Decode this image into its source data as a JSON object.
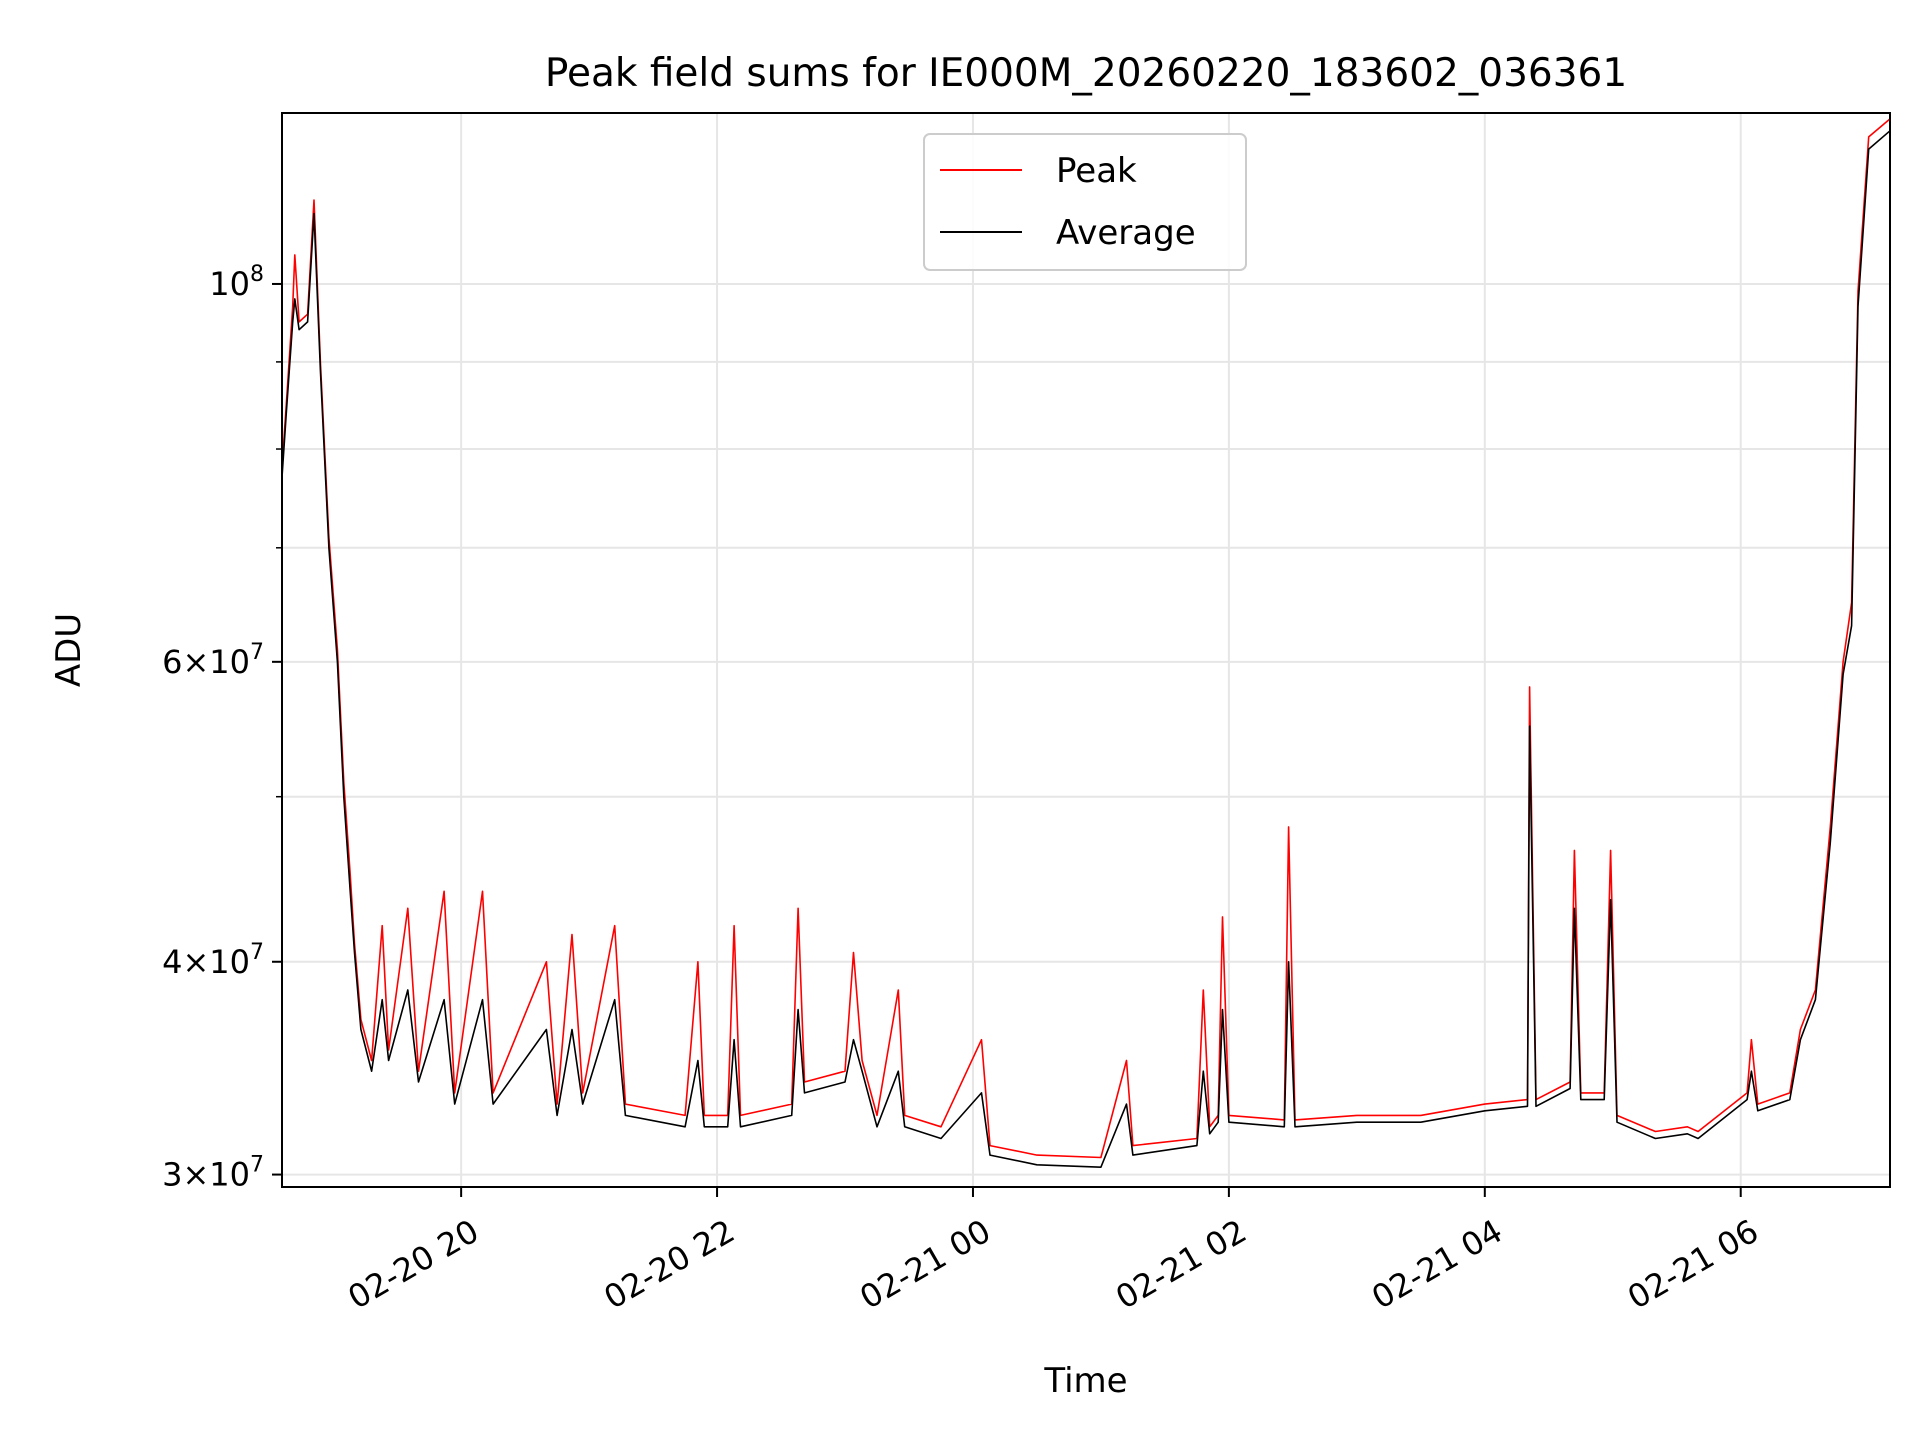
{
  "chart_data": {
    "type": "line",
    "title": "Peak field sums for IE000M_20260220_183602_036361",
    "xlabel": "Time",
    "ylabel": "ADU",
    "yscale": "log",
    "ylim": [
      29500000,
      126000000
    ],
    "xlim": [
      "2026-02-20 18:36",
      "2026-02-21 07:10"
    ],
    "grid": true,
    "legend_position": "top-center",
    "x_ticks": [
      {
        "x": "2026-02-20 20:00",
        "label": "02-20 20"
      },
      {
        "x": "2026-02-20 22:00",
        "label": "02-20 22"
      },
      {
        "x": "2026-02-21 00:00",
        "label": "02-21 00"
      },
      {
        "x": "2026-02-21 02:00",
        "label": "02-21 02"
      },
      {
        "x": "2026-02-21 04:00",
        "label": "02-21 04"
      },
      {
        "x": "2026-02-21 06:00",
        "label": "02-21 06"
      }
    ],
    "y_ticks_major": [
      {
        "value": 30000000,
        "base": "3",
        "exp": "7"
      },
      {
        "value": 40000000,
        "base": "4",
        "exp": "7"
      },
      {
        "value": 60000000,
        "base": "6",
        "exp": "7"
      },
      {
        "value": 100000000,
        "base": "",
        "exp": "8"
      }
    ],
    "y_ticks_minor": [
      50000000,
      70000000,
      80000000,
      90000000
    ],
    "series": [
      {
        "name": "Peak",
        "color": "#ff0000",
        "points": [
          [
            "2026-02-20 18:36",
            78000000
          ],
          [
            "2026-02-20 18:38",
            85000000
          ],
          [
            "2026-02-20 18:41",
            97000000
          ],
          [
            "2026-02-20 18:42",
            104000000
          ],
          [
            "2026-02-20 18:44",
            95000000
          ],
          [
            "2026-02-20 18:48",
            96000000
          ],
          [
            "2026-02-20 18:51",
            112000000
          ],
          [
            "2026-02-20 18:54",
            90000000
          ],
          [
            "2026-02-20 18:58",
            71000000
          ],
          [
            "2026-02-20 19:02",
            61000000
          ],
          [
            "2026-02-20 19:05",
            51000000
          ],
          [
            "2026-02-20 19:08",
            45000000
          ],
          [
            "2026-02-20 19:10",
            41000000
          ],
          [
            "2026-02-20 19:13",
            37000000
          ],
          [
            "2026-02-20 19:18",
            35000000
          ],
          [
            "2026-02-20 19:23",
            42000000
          ],
          [
            "2026-02-20 19:26",
            35500000
          ],
          [
            "2026-02-20 19:35",
            43000000
          ],
          [
            "2026-02-20 19:40",
            34500000
          ],
          [
            "2026-02-20 19:52",
            44000000
          ],
          [
            "2026-02-20 19:57",
            33500000
          ],
          [
            "2026-02-20 20:10",
            44000000
          ],
          [
            "2026-02-20 20:15",
            33500000
          ],
          [
            "2026-02-20 20:40",
            40000000
          ],
          [
            "2026-02-20 20:45",
            33000000
          ],
          [
            "2026-02-20 20:52",
            41500000
          ],
          [
            "2026-02-20 20:57",
            33500000
          ],
          [
            "2026-02-20 21:12",
            42000000
          ],
          [
            "2026-02-20 21:17",
            33000000
          ],
          [
            "2026-02-20 21:45",
            32500000
          ],
          [
            "2026-02-20 21:51",
            40000000
          ],
          [
            "2026-02-20 21:54",
            32500000
          ],
          [
            "2026-02-20 22:05",
            32500000
          ],
          [
            "2026-02-20 22:08",
            42000000
          ],
          [
            "2026-02-20 22:11",
            32500000
          ],
          [
            "2026-02-20 22:35",
            33000000
          ],
          [
            "2026-02-20 22:38",
            43000000
          ],
          [
            "2026-02-20 22:41",
            34000000
          ],
          [
            "2026-02-20 23:00",
            34500000
          ],
          [
            "2026-02-20 23:04",
            40500000
          ],
          [
            "2026-02-20 23:08",
            35000000
          ],
          [
            "2026-02-20 23:15",
            32500000
          ],
          [
            "2026-02-20 23:25",
            38500000
          ],
          [
            "2026-02-20 23:28",
            32500000
          ],
          [
            "2026-02-20 23:45",
            32000000
          ],
          [
            "2026-02-21 00:04",
            36000000
          ],
          [
            "2026-02-21 00:08",
            31200000
          ],
          [
            "2026-02-21 00:30",
            30800000
          ],
          [
            "2026-02-21 01:00",
            30700000
          ],
          [
            "2026-02-21 01:12",
            35000000
          ],
          [
            "2026-02-21 01:15",
            31200000
          ],
          [
            "2026-02-21 01:45",
            31500000
          ],
          [
            "2026-02-21 01:48",
            38500000
          ],
          [
            "2026-02-21 01:51",
            32000000
          ],
          [
            "2026-02-21 01:55",
            32500000
          ],
          [
            "2026-02-21 01:57",
            42500000
          ],
          [
            "2026-02-21 02:00",
            32500000
          ],
          [
            "2026-02-21 02:26",
            32300000
          ],
          [
            "2026-02-21 02:28",
            48000000
          ],
          [
            "2026-02-21 02:31",
            32300000
          ],
          [
            "2026-02-21 03:00",
            32500000
          ],
          [
            "2026-02-21 03:30",
            32500000
          ],
          [
            "2026-02-21 04:00",
            33000000
          ],
          [
            "2026-02-21 04:20",
            33200000
          ],
          [
            "2026-02-21 04:21",
            58000000
          ],
          [
            "2026-02-21 04:24",
            33200000
          ],
          [
            "2026-02-21 04:40",
            34000000
          ],
          [
            "2026-02-21 04:42",
            46500000
          ],
          [
            "2026-02-21 04:45",
            33500000
          ],
          [
            "2026-02-21 04:56",
            33500000
          ],
          [
            "2026-02-21 04:59",
            46500000
          ],
          [
            "2026-02-21 05:02",
            32500000
          ],
          [
            "2026-02-21 05:20",
            31800000
          ],
          [
            "2026-02-21 05:35",
            32000000
          ],
          [
            "2026-02-21 05:40",
            31800000
          ],
          [
            "2026-02-21 06:03",
            33500000
          ],
          [
            "2026-02-21 06:05",
            36000000
          ],
          [
            "2026-02-21 06:08",
            33000000
          ],
          [
            "2026-02-21 06:23",
            33500000
          ],
          [
            "2026-02-21 06:28",
            36500000
          ],
          [
            "2026-02-21 06:35",
            38500000
          ],
          [
            "2026-02-21 06:42",
            48000000
          ],
          [
            "2026-02-21 06:48",
            60000000
          ],
          [
            "2026-02-21 06:52",
            65000000
          ],
          [
            "2026-02-21 06:55",
            99000000
          ],
          [
            "2026-02-21 07:00",
            122000000
          ],
          [
            "2026-02-21 07:10",
            125000000
          ]
        ]
      },
      {
        "name": "Average",
        "color": "#000000",
        "points": [
          [
            "2026-02-20 18:36",
            77000000
          ],
          [
            "2026-02-20 18:38",
            84000000
          ],
          [
            "2026-02-20 18:41",
            95000000
          ],
          [
            "2026-02-20 18:42",
            98000000
          ],
          [
            "2026-02-20 18:44",
            94000000
          ],
          [
            "2026-02-20 18:48",
            95000000
          ],
          [
            "2026-02-20 18:51",
            110000000
          ],
          [
            "2026-02-20 18:54",
            89000000
          ],
          [
            "2026-02-20 18:58",
            70000000
          ],
          [
            "2026-02-20 19:02",
            60000000
          ],
          [
            "2026-02-20 19:05",
            50000000
          ],
          [
            "2026-02-20 19:08",
            44000000
          ],
          [
            "2026-02-20 19:10",
            40500000
          ],
          [
            "2026-02-20 19:13",
            36500000
          ],
          [
            "2026-02-20 19:18",
            34500000
          ],
          [
            "2026-02-20 19:23",
            38000000
          ],
          [
            "2026-02-20 19:26",
            35000000
          ],
          [
            "2026-02-20 19:35",
            38500000
          ],
          [
            "2026-02-20 19:40",
            34000000
          ],
          [
            "2026-02-20 19:52",
            38000000
          ],
          [
            "2026-02-20 19:57",
            33000000
          ],
          [
            "2026-02-20 20:10",
            38000000
          ],
          [
            "2026-02-20 20:15",
            33000000
          ],
          [
            "2026-02-20 20:40",
            36500000
          ],
          [
            "2026-02-20 20:45",
            32500000
          ],
          [
            "2026-02-20 20:52",
            36500000
          ],
          [
            "2026-02-20 20:57",
            33000000
          ],
          [
            "2026-02-20 21:12",
            38000000
          ],
          [
            "2026-02-20 21:17",
            32500000
          ],
          [
            "2026-02-20 21:45",
            32000000
          ],
          [
            "2026-02-20 21:51",
            35000000
          ],
          [
            "2026-02-20 21:54",
            32000000
          ],
          [
            "2026-02-20 22:05",
            32000000
          ],
          [
            "2026-02-20 22:08",
            36000000
          ],
          [
            "2026-02-20 22:11",
            32000000
          ],
          [
            "2026-02-20 22:35",
            32500000
          ],
          [
            "2026-02-20 22:38",
            37500000
          ],
          [
            "2026-02-20 22:41",
            33500000
          ],
          [
            "2026-02-20 23:00",
            34000000
          ],
          [
            "2026-02-20 23:04",
            36000000
          ],
          [
            "2026-02-20 23:08",
            34500000
          ],
          [
            "2026-02-20 23:15",
            32000000
          ],
          [
            "2026-02-20 23:25",
            34500000
          ],
          [
            "2026-02-20 23:28",
            32000000
          ],
          [
            "2026-02-20 23:45",
            31500000
          ],
          [
            "2026-02-21 00:04",
            33500000
          ],
          [
            "2026-02-21 00:08",
            30800000
          ],
          [
            "2026-02-21 00:30",
            30400000
          ],
          [
            "2026-02-21 01:00",
            30300000
          ],
          [
            "2026-02-21 01:12",
            33000000
          ],
          [
            "2026-02-21 01:15",
            30800000
          ],
          [
            "2026-02-21 01:45",
            31200000
          ],
          [
            "2026-02-21 01:48",
            34500000
          ],
          [
            "2026-02-21 01:51",
            31700000
          ],
          [
            "2026-02-21 01:55",
            32200000
          ],
          [
            "2026-02-21 01:57",
            37500000
          ],
          [
            "2026-02-21 02:00",
            32200000
          ],
          [
            "2026-02-21 02:26",
            32000000
          ],
          [
            "2026-02-21 02:28",
            40000000
          ],
          [
            "2026-02-21 02:31",
            32000000
          ],
          [
            "2026-02-21 03:00",
            32200000
          ],
          [
            "2026-02-21 03:30",
            32200000
          ],
          [
            "2026-02-21 04:00",
            32700000
          ],
          [
            "2026-02-21 04:20",
            32900000
          ],
          [
            "2026-02-21 04:21",
            55000000
          ],
          [
            "2026-02-21 04:24",
            32900000
          ],
          [
            "2026-02-21 04:40",
            33700000
          ],
          [
            "2026-02-21 04:42",
            43000000
          ],
          [
            "2026-02-21 04:45",
            33200000
          ],
          [
            "2026-02-21 04:56",
            33200000
          ],
          [
            "2026-02-21 04:59",
            43500000
          ],
          [
            "2026-02-21 05:02",
            32200000
          ],
          [
            "2026-02-21 05:20",
            31500000
          ],
          [
            "2026-02-21 05:35",
            31700000
          ],
          [
            "2026-02-21 05:40",
            31500000
          ],
          [
            "2026-02-21 06:03",
            33200000
          ],
          [
            "2026-02-21 06:05",
            34500000
          ],
          [
            "2026-02-21 06:08",
            32700000
          ],
          [
            "2026-02-21 06:23",
            33200000
          ],
          [
            "2026-02-21 06:28",
            36000000
          ],
          [
            "2026-02-21 06:35",
            38000000
          ],
          [
            "2026-02-21 06:42",
            47000000
          ],
          [
            "2026-02-21 06:48",
            59000000
          ],
          [
            "2026-02-21 06:52",
            63000000
          ],
          [
            "2026-02-21 06:55",
            97000000
          ],
          [
            "2026-02-21 07:00",
            120000000
          ],
          [
            "2026-02-21 07:10",
            123000000
          ]
        ]
      }
    ]
  }
}
